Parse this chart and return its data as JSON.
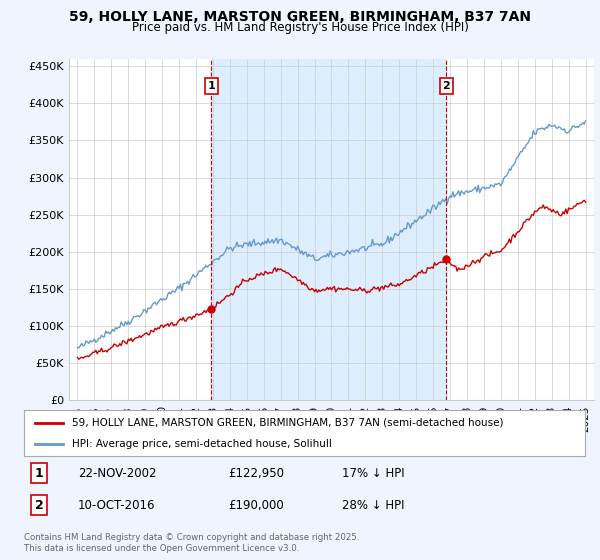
{
  "title": "59, HOLLY LANE, MARSTON GREEN, BIRMINGHAM, B37 7AN",
  "subtitle": "Price paid vs. HM Land Registry's House Price Index (HPI)",
  "legend_entry1": "59, HOLLY LANE, MARSTON GREEN, BIRMINGHAM, B37 7AN (semi-detached house)",
  "legend_entry2": "HPI: Average price, semi-detached house, Solihull",
  "annotation1_label": "1",
  "annotation1_date": "22-NOV-2002",
  "annotation1_price": "£122,950",
  "annotation1_hpi": "17% ↓ HPI",
  "annotation1_year": 2002.9,
  "annotation1_value": 122950,
  "annotation2_label": "2",
  "annotation2_date": "10-OCT-2016",
  "annotation2_price": "£190,000",
  "annotation2_hpi": "28% ↓ HPI",
  "annotation2_year": 2016.78,
  "annotation2_value": 190000,
  "ylim_min": 0,
  "ylim_max": 460000,
  "yticks": [
    0,
    50000,
    100000,
    150000,
    200000,
    250000,
    300000,
    350000,
    400000,
    450000
  ],
  "ytick_labels": [
    "£0",
    "£50K",
    "£100K",
    "£150K",
    "£200K",
    "£250K",
    "£300K",
    "£350K",
    "£400K",
    "£450K"
  ],
  "line1_color": "#cc0000",
  "line2_color": "#6699cc",
  "vline_color": "#cc0000",
  "shade_color": "#ddeeff",
  "background_color": "#f0f4ff",
  "plot_background": "#ffffff",
  "grid_color": "#cccccc",
  "footnote": "Contains HM Land Registry data © Crown copyright and database right 2025.\nThis data is licensed under the Open Government Licence v3.0.",
  "xlim_min": 1994.5,
  "xlim_max": 2025.5,
  "xtick_start": 1995,
  "xtick_end": 2025
}
